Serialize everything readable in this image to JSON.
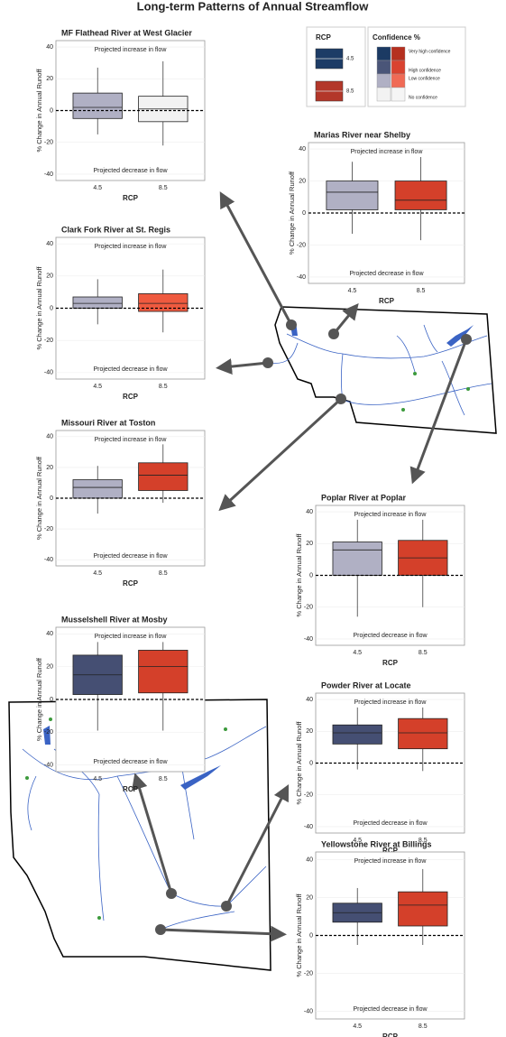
{
  "title": "Long-term Patterns of Annual Streamflow",
  "legend": {
    "rcp_title": "RCP",
    "rcp_entries": [
      {
        "label": "4.5",
        "color": "#1d3c66"
      },
      {
        "label": "8.5",
        "color": "#b3372a"
      }
    ],
    "confidence_title": "Confidence %",
    "confidence_entries": [
      {
        "label": "Very high confidence",
        "colors": [
          "#1b3a63",
          "#b5301f"
        ]
      },
      {
        "label": "High confidence",
        "colors": [
          "#4a5578",
          "#d94330"
        ]
      },
      {
        "label": "Low confidence",
        "colors": [
          "#b0b0c4",
          "#f06a55"
        ]
      },
      {
        "label": "No confidence",
        "colors": [
          "#f2f2f2",
          "#f5f5f5"
        ]
      }
    ]
  },
  "chart_data": [
    {
      "type": "box",
      "title": "MF Flathead River at West Glacier",
      "xlabel": "RCP",
      "ylabel": "% Change in Annual Runoff",
      "annotations": [
        "Projected increase in flow",
        "Projected decrease in flow"
      ],
      "categories": [
        "4.5",
        "8.5"
      ],
      "ylim": [
        -44,
        44
      ],
      "yticks": [
        -40,
        -20,
        0,
        20,
        40
      ],
      "hline": 0,
      "boxes": [
        {
          "whisker_low": -15,
          "q1": -5,
          "median": 2,
          "q3": 11,
          "whisker_high": 27,
          "color": "#b0b0c4"
        },
        {
          "whisker_low": -22,
          "q1": -7,
          "median": 1,
          "q3": 9,
          "whisker_high": 31,
          "color": "#f2f2f2"
        }
      ]
    },
    {
      "type": "box",
      "title": "Marias River near Shelby",
      "xlabel": "RCP",
      "ylabel": "% Change in Annual Runoff",
      "annotations": [
        "Projected increase in flow",
        "Projected decrease in flow"
      ],
      "categories": [
        "4.5",
        "8.5"
      ],
      "ylim": [
        -44,
        44
      ],
      "yticks": [
        -40,
        -20,
        0,
        20,
        40
      ],
      "hline": 0,
      "boxes": [
        {
          "whisker_low": -13,
          "q1": 2,
          "median": 13,
          "q3": 20,
          "whisker_high": 32,
          "color": "#b0b0c4"
        },
        {
          "whisker_low": -17,
          "q1": 2,
          "median": 8,
          "q3": 20,
          "whisker_high": 35,
          "color": "#d4402a"
        }
      ]
    },
    {
      "type": "box",
      "title": "Clark Fork River at St. Regis",
      "xlabel": "RCP",
      "ylabel": "% Change in Annual Runoff",
      "annotations": [
        "Projected increase in flow",
        "Projected decrease in flow"
      ],
      "categories": [
        "4.5",
        "8.5"
      ],
      "ylim": [
        -44,
        44
      ],
      "yticks": [
        -40,
        -20,
        0,
        20,
        40
      ],
      "hline": 0,
      "boxes": [
        {
          "whisker_low": -10,
          "q1": 0,
          "median": 3,
          "q3": 7,
          "whisker_high": 18,
          "color": "#b0b0c4"
        },
        {
          "whisker_low": -15,
          "q1": -2,
          "median": 3,
          "q3": 9,
          "whisker_high": 24,
          "color": "#ef5a3f"
        }
      ]
    },
    {
      "type": "box",
      "title": "Missouri River at Toston",
      "xlabel": "RCP",
      "ylabel": "% Change in Annual Runoff",
      "annotations": [
        "Projected increase in flow",
        "Projected decrease in flow"
      ],
      "categories": [
        "4.5",
        "8.5"
      ],
      "ylim": [
        -44,
        44
      ],
      "yticks": [
        -40,
        -20,
        0,
        20,
        40
      ],
      "hline": 0,
      "boxes": [
        {
          "whisker_low": -10,
          "q1": 0,
          "median": 7,
          "q3": 12,
          "whisker_high": 21,
          "color": "#b0b0c4"
        },
        {
          "whisker_low": -3,
          "q1": 5,
          "median": 15,
          "q3": 23,
          "whisker_high": 35,
          "color": "#d4402a"
        }
      ]
    },
    {
      "type": "box",
      "title": "Poplar River at Poplar",
      "xlabel": "RCP",
      "ylabel": "% Change in Annual Runoff",
      "annotations": [
        "Projected increase in flow",
        "Projected decrease in flow"
      ],
      "categories": [
        "4.5",
        "8.5"
      ],
      "ylim": [
        -44,
        44
      ],
      "yticks": [
        -40,
        -20,
        0,
        20,
        40
      ],
      "hline": 0,
      "boxes": [
        {
          "whisker_low": -26,
          "q1": 0,
          "median": 16,
          "q3": 21,
          "whisker_high": 35,
          "color": "#b0b0c4"
        },
        {
          "whisker_low": -20,
          "q1": 0,
          "median": 11,
          "q3": 22,
          "whisker_high": 35,
          "color": "#d4402a"
        }
      ]
    },
    {
      "type": "box",
      "title": "Musselshell River at Mosby",
      "xlabel": "RCP",
      "ylabel": "% Change in Annual Runoff",
      "annotations": [
        "Projected increase in flow",
        "Projected decrease in flow"
      ],
      "categories": [
        "4.5",
        "8.5"
      ],
      "ylim": [
        -44,
        44
      ],
      "yticks": [
        -40,
        -20,
        0,
        20,
        40
      ],
      "hline": 0,
      "boxes": [
        {
          "whisker_low": -19,
          "q1": 3,
          "median": 15,
          "q3": 27,
          "whisker_high": 35,
          "color": "#454f73"
        },
        {
          "whisker_low": -19,
          "q1": 4,
          "median": 20,
          "q3": 30,
          "whisker_high": 35,
          "color": "#d4402a"
        }
      ]
    },
    {
      "type": "box",
      "title": "Powder River at Locate",
      "xlabel": "RCP",
      "ylabel": "% Change in Annual Runoff",
      "annotations": [
        "Projected increase in flow",
        "Projected decrease in flow"
      ],
      "categories": [
        "4.5",
        "8.5"
      ],
      "ylim": [
        -44,
        44
      ],
      "yticks": [
        -40,
        -20,
        0,
        20,
        40
      ],
      "hline": 0,
      "boxes": [
        {
          "whisker_low": -4,
          "q1": 12,
          "median": 19,
          "q3": 24,
          "whisker_high": 35,
          "color": "#454f73"
        },
        {
          "whisker_low": -5,
          "q1": 9,
          "median": 19,
          "q3": 28,
          "whisker_high": 35,
          "color": "#d4402a"
        }
      ]
    },
    {
      "type": "box",
      "title": "Yellowstone River at Billings",
      "xlabel": "RCP",
      "ylabel": "% Change in Annual Runoff",
      "annotations": [
        "Projected increase in flow",
        "Projected decrease in flow"
      ],
      "categories": [
        "4.5",
        "8.5"
      ],
      "ylim": [
        -44,
        44
      ],
      "yticks": [
        -40,
        -20,
        0,
        20,
        40
      ],
      "hline": 0,
      "boxes": [
        {
          "whisker_low": -5,
          "q1": 7,
          "median": 12,
          "q3": 17,
          "whisker_high": 25,
          "color": "#454f73"
        },
        {
          "whisker_low": -5,
          "q1": 5,
          "median": 16,
          "q3": 23,
          "whisker_high": 35,
          "color": "#d4402a"
        }
      ]
    }
  ]
}
